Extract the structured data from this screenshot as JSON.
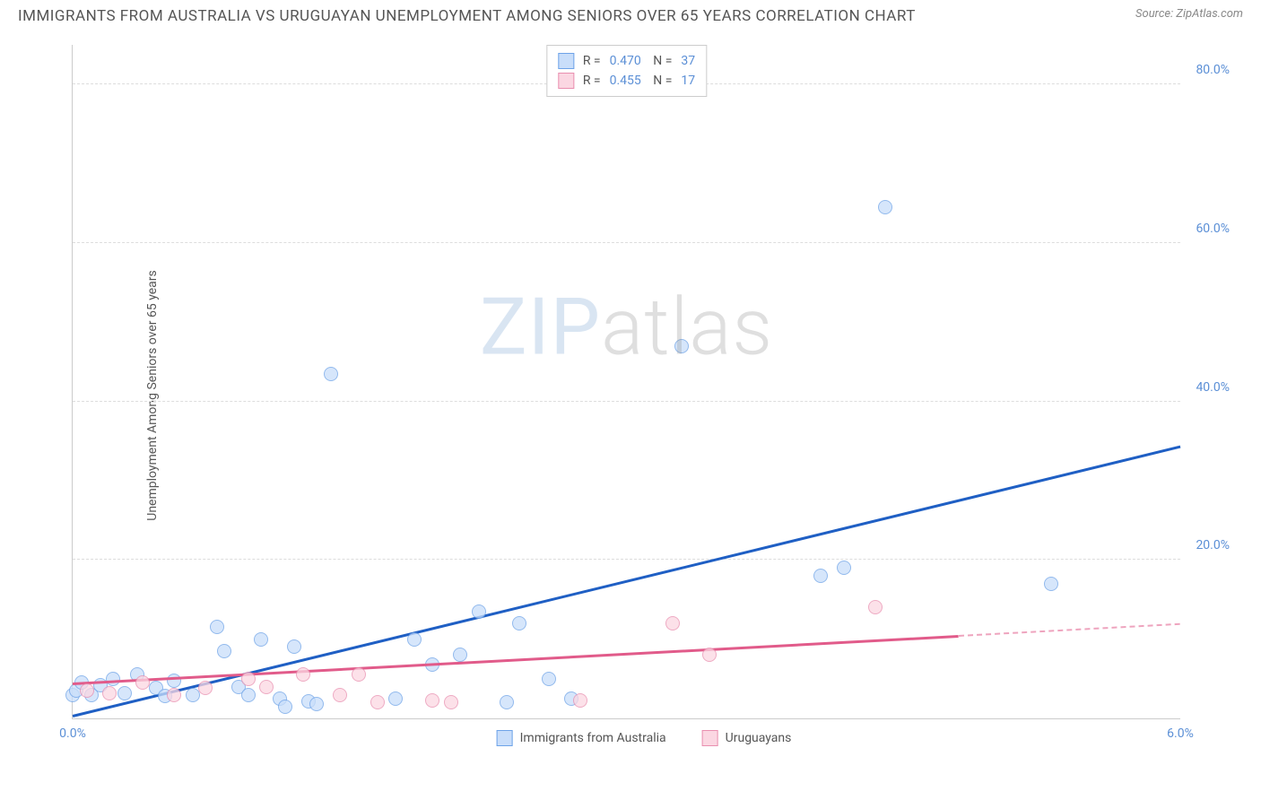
{
  "title": "IMMIGRANTS FROM AUSTRALIA VS URUGUAYAN UNEMPLOYMENT AMONG SENIORS OVER 65 YEARS CORRELATION CHART",
  "source_label": "Source: ZipAtlas.com",
  "watermark": {
    "part1": "ZIP",
    "part2": "atlas"
  },
  "chart": {
    "type": "scatter",
    "xlim": [
      0,
      6
    ],
    "ylim": [
      0,
      85
    ],
    "xticks": [
      {
        "v": 0,
        "l": "0.0%"
      },
      {
        "v": 6,
        "l": "6.0%"
      }
    ],
    "yticks": [
      {
        "v": 20,
        "l": "20.0%"
      },
      {
        "v": 40,
        "l": "40.0%"
      },
      {
        "v": 60,
        "l": "60.0%"
      },
      {
        "v": 80,
        "l": "80.0%"
      }
    ],
    "ygrid": [
      20,
      40,
      60,
      80
    ],
    "ylabel": "Unemployment Among Seniors over 65 years",
    "background_color": "#ffffff",
    "grid_color": "#dddddd",
    "axis_value_color": "#5b8fd6",
    "point_radius": 8,
    "point_opacity": 0.75,
    "series": [
      {
        "name": "Immigrants from Australia",
        "fill": "#c9defa",
        "stroke": "#6ea3e8",
        "trend_color": "#1f5fc4",
        "R": "0.470",
        "N": "37",
        "trend": {
          "x1": 0.0,
          "y1": 0.5,
          "x2": 6.0,
          "y2": 34.5
        },
        "points": [
          [
            0.0,
            3.0
          ],
          [
            0.02,
            3.5
          ],
          [
            0.05,
            4.5
          ],
          [
            0.1,
            3.0
          ],
          [
            0.15,
            4.2
          ],
          [
            0.22,
            5.0
          ],
          [
            0.28,
            3.2
          ],
          [
            0.35,
            5.5
          ],
          [
            0.45,
            3.8
          ],
          [
            0.55,
            4.8
          ],
          [
            0.65,
            3.0
          ],
          [
            0.78,
            11.5
          ],
          [
            0.82,
            8.5
          ],
          [
            0.9,
            4.0
          ],
          [
            0.95,
            3.0
          ],
          [
            1.02,
            10.0
          ],
          [
            1.12,
            2.5
          ],
          [
            1.15,
            1.5
          ],
          [
            1.2,
            9.0
          ],
          [
            1.28,
            2.2
          ],
          [
            1.32,
            1.8
          ],
          [
            1.4,
            43.5
          ],
          [
            1.75,
            2.5
          ],
          [
            1.85,
            10.0
          ],
          [
            1.95,
            6.8
          ],
          [
            2.1,
            8.0
          ],
          [
            2.2,
            13.5
          ],
          [
            2.35,
            2.0
          ],
          [
            2.42,
            12.0
          ],
          [
            2.58,
            5.0
          ],
          [
            2.7,
            2.5
          ],
          [
            3.3,
            47.0
          ],
          [
            4.05,
            18.0
          ],
          [
            4.18,
            19.0
          ],
          [
            4.4,
            64.5
          ],
          [
            5.3,
            17.0
          ],
          [
            0.5,
            2.8
          ]
        ]
      },
      {
        "name": "Uruguayans",
        "fill": "#fbd7e2",
        "stroke": "#e98fb0",
        "trend_color": "#e15b8a",
        "R": "0.455",
        "N": "17",
        "trend": {
          "x1": 0.0,
          "y1": 4.5,
          "x2": 4.8,
          "y2": 10.5
        },
        "trend_dash": {
          "x1": 4.8,
          "y1": 10.5,
          "x2": 6.0,
          "y2": 12.0
        },
        "points": [
          [
            0.08,
            3.5
          ],
          [
            0.2,
            3.2
          ],
          [
            0.38,
            4.5
          ],
          [
            0.55,
            3.0
          ],
          [
            0.95,
            5.0
          ],
          [
            1.05,
            4.0
          ],
          [
            1.25,
            5.5
          ],
          [
            1.45,
            3.0
          ],
          [
            1.55,
            5.5
          ],
          [
            1.65,
            2.0
          ],
          [
            1.95,
            2.3
          ],
          [
            2.05,
            2.0
          ],
          [
            2.75,
            2.3
          ],
          [
            3.25,
            12.0
          ],
          [
            3.45,
            8.0
          ],
          [
            4.35,
            14.0
          ],
          [
            0.72,
            3.8
          ]
        ]
      }
    ]
  },
  "legend_bottom": [
    {
      "swatch_fill": "#c9defa",
      "swatch_stroke": "#6ea3e8",
      "label": "Immigrants from Australia"
    },
    {
      "swatch_fill": "#fbd7e2",
      "swatch_stroke": "#e98fb0",
      "label": "Uruguayans"
    }
  ]
}
